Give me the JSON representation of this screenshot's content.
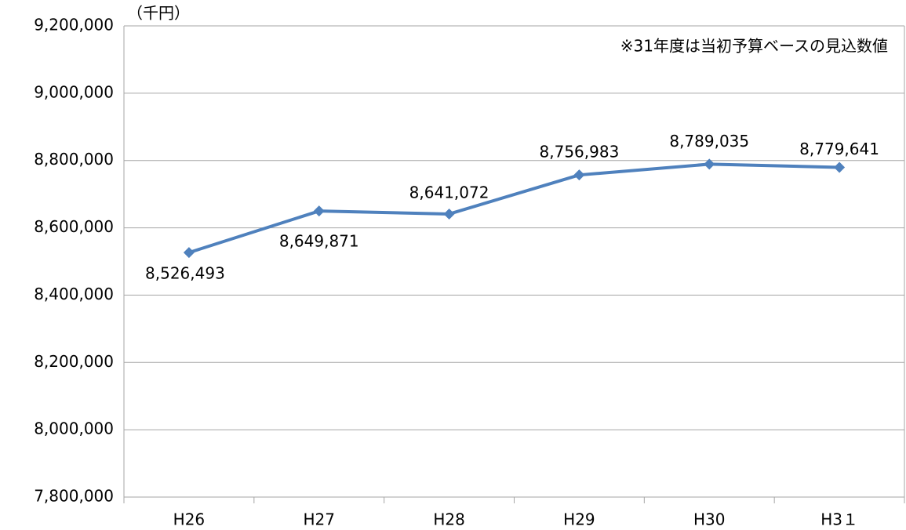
{
  "chart_data": {
    "type": "line",
    "unit_label": "（千円）",
    "annotation": "※31年度は当初予算ベースの見込数値",
    "categories": [
      "H26",
      "H27",
      "H28",
      "H29",
      "H30",
      "H3１"
    ],
    "series": [
      {
        "color": "#4f81bd",
        "values": [
          8526493,
          8649871,
          8641072,
          8756983,
          8789035,
          8779641
        ],
        "value_labels": [
          "8,526,493",
          "8,649,871",
          "8,641,072",
          "8,756,983",
          "8,789,035",
          "8,779,641"
        ]
      }
    ],
    "ylim": [
      7800000,
      9200000
    ],
    "yticks": [
      {
        "value": 7800000,
        "label": "7,800,000"
      },
      {
        "value": 8000000,
        "label": "8,000,000"
      },
      {
        "value": 8200000,
        "label": "8,200,000"
      },
      {
        "value": 8400000,
        "label": "8,400,000"
      },
      {
        "value": 8600000,
        "label": "8,600,000"
      },
      {
        "value": 8800000,
        "label": "8,800,000"
      },
      {
        "value": 9000000,
        "label": "9,000,000"
      },
      {
        "value": 9200000,
        "label": "9,200,000"
      }
    ],
    "grid": true
  }
}
